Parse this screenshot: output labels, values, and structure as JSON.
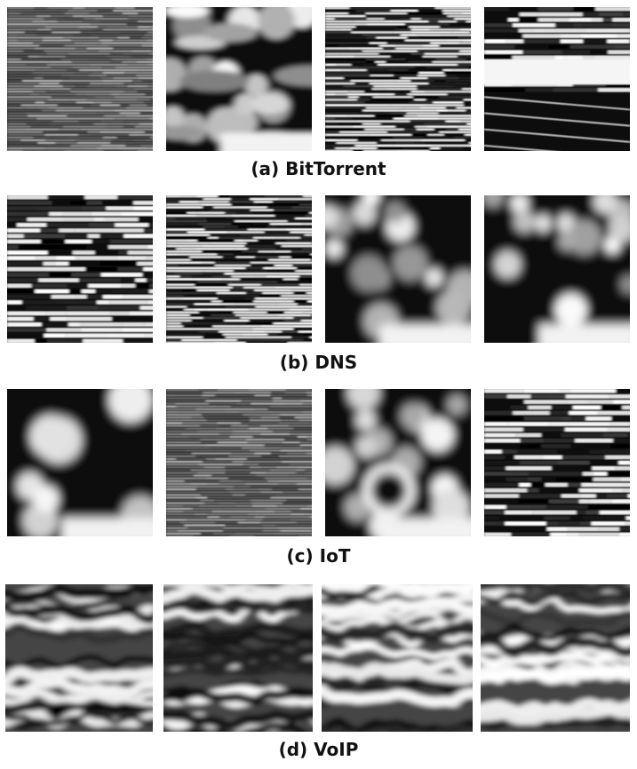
{
  "groups": [
    {
      "caption": "(a) BitTorrent",
      "tiles": [
        {
          "pattern": "fine-horizontal-stripes-gray"
        },
        {
          "pattern": "blurred-blobs-horizontal"
        },
        {
          "pattern": "dense-high-contrast-stripes"
        },
        {
          "pattern": "thin-stripes-bright-band-dark-bottom"
        }
      ]
    },
    {
      "caption": "(b) DNS",
      "tiles": [
        {
          "pattern": "horizontal-streaks-dark"
        },
        {
          "pattern": "dense-horizontal-streaks"
        },
        {
          "pattern": "soft-blobs-dark"
        },
        {
          "pattern": "soft-blobs-dark"
        }
      ]
    },
    {
      "caption": "(c) IoT",
      "tiles": [
        {
          "pattern": "large-soft-blobs"
        },
        {
          "pattern": "fine-horizontal-stripes-gray"
        },
        {
          "pattern": "soft-blobs-rings"
        },
        {
          "pattern": "horizontal-streaks-mixed"
        }
      ]
    },
    {
      "caption": "(d) VoIP",
      "tiles": [
        {
          "pattern": "wavy-horizontal-bands"
        },
        {
          "pattern": "wavy-horizontal-bands"
        },
        {
          "pattern": "wavy-horizontal-bands"
        },
        {
          "pattern": "wavy-horizontal-bands"
        }
      ]
    }
  ]
}
